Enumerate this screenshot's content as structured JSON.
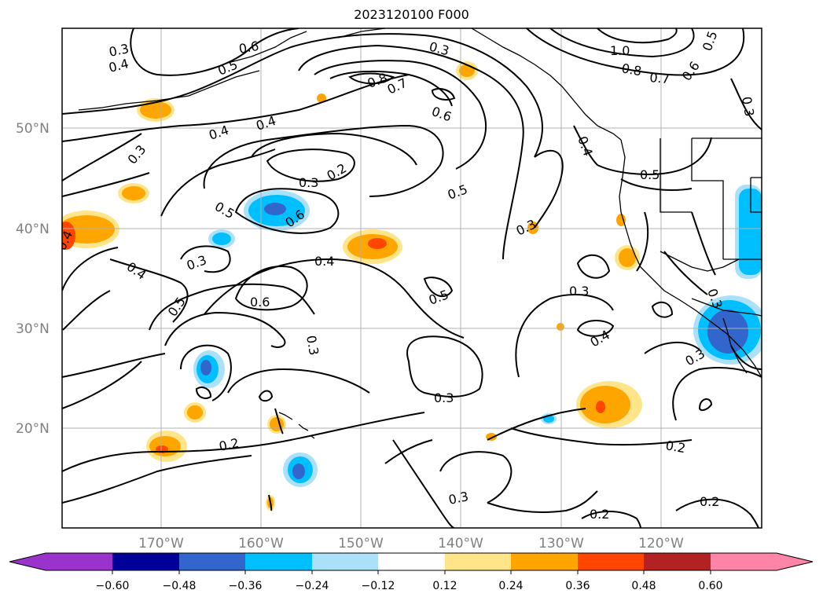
{
  "title": "2023120100 F000",
  "lat_labels": [
    "50°N",
    "40°N",
    "30°N",
    "20°N"
  ],
  "lon_labels": [
    "170°W",
    "160°W",
    "150°W",
    "140°W",
    "130°W",
    "120°W"
  ],
  "colorbar": {
    "tick_labels": [
      "−0.60",
      "−0.48",
      "−0.36",
      "−0.24",
      "−0.12",
      "0.12",
      "0.24",
      "0.36",
      "0.48",
      "0.60"
    ],
    "colors": [
      "#9933cc",
      "#000099",
      "#3366cc",
      "#00bfff",
      "#abe0f9",
      "#ffffff",
      "#ffe58a",
      "#ffa500",
      "#ff4500",
      "#b22222",
      "#ff85a8"
    ],
    "extend": "both"
  },
  "contour_labels": [
    "0.3",
    "0.4",
    "0.6",
    "0.5",
    "0.3",
    "0.8",
    "0.7",
    "0.6",
    "1.0",
    "0.8",
    "0.7",
    "0.6",
    "0.5",
    "0.3",
    "0.4",
    "0.4",
    "0.3",
    "0.3",
    "0.2",
    "0.5",
    "0.6",
    "0.5",
    "0.4",
    "0.3",
    "0.4",
    "0.5",
    "0.6",
    "0.3",
    "0.5",
    "0.3",
    "0.4",
    "0.3",
    "0.3",
    "0.3",
    "0.2",
    "0.2",
    "0.3",
    "0.2",
    "0.2",
    "0.4",
    "0.3",
    "0.5",
    "0.4"
  ]
}
